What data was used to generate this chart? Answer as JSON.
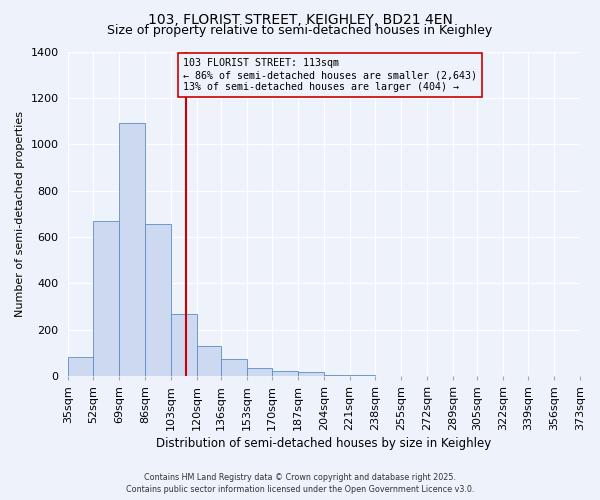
{
  "title": "103, FLORIST STREET, KEIGHLEY, BD21 4EN",
  "subtitle": "Size of property relative to semi-detached houses in Keighley",
  "xlabel": "Distribution of semi-detached houses by size in Keighley",
  "ylabel": "Number of semi-detached properties",
  "bar_values": [
    80,
    670,
    1090,
    655,
    265,
    130,
    75,
    35,
    20,
    15,
    5,
    2,
    0,
    0,
    1,
    0,
    0,
    0,
    0,
    0
  ],
  "bin_labels": [
    "35sqm",
    "52sqm",
    "69sqm",
    "86sqm",
    "103sqm",
    "120sqm",
    "136sqm",
    "153sqm",
    "170sqm",
    "187sqm",
    "204sqm",
    "221sqm",
    "238sqm",
    "255sqm",
    "272sqm",
    "289sqm",
    "305sqm",
    "322sqm",
    "339sqm",
    "356sqm",
    "373sqm"
  ],
  "bin_edges": [
    35,
    52,
    69,
    86,
    103,
    120,
    136,
    153,
    170,
    187,
    204,
    221,
    238,
    255,
    272,
    289,
    305,
    322,
    339,
    356,
    373
  ],
  "bar_color": "#ccd9f0",
  "bar_edgecolor": "#5b8ec4",
  "vline_x": 113,
  "vline_color": "#cc0000",
  "annotation_text": "103 FLORIST STREET: 113sqm\n← 86% of semi-detached houses are smaller (2,643)\n13% of semi-detached houses are larger (404) →",
  "annotation_box_edgecolor": "#cc0000",
  "annotation_box_facecolor": "#eef2fb",
  "ylim": [
    0,
    1400
  ],
  "yticks": [
    0,
    200,
    400,
    600,
    800,
    1000,
    1200,
    1400
  ],
  "bg_color": "#eef2fb",
  "grid_color": "#ffffff",
  "footer1": "Contains HM Land Registry data © Crown copyright and database right 2025.",
  "footer2": "Contains public sector information licensed under the Open Government Licence v3.0.",
  "title_fontsize": 10,
  "subtitle_fontsize": 9
}
